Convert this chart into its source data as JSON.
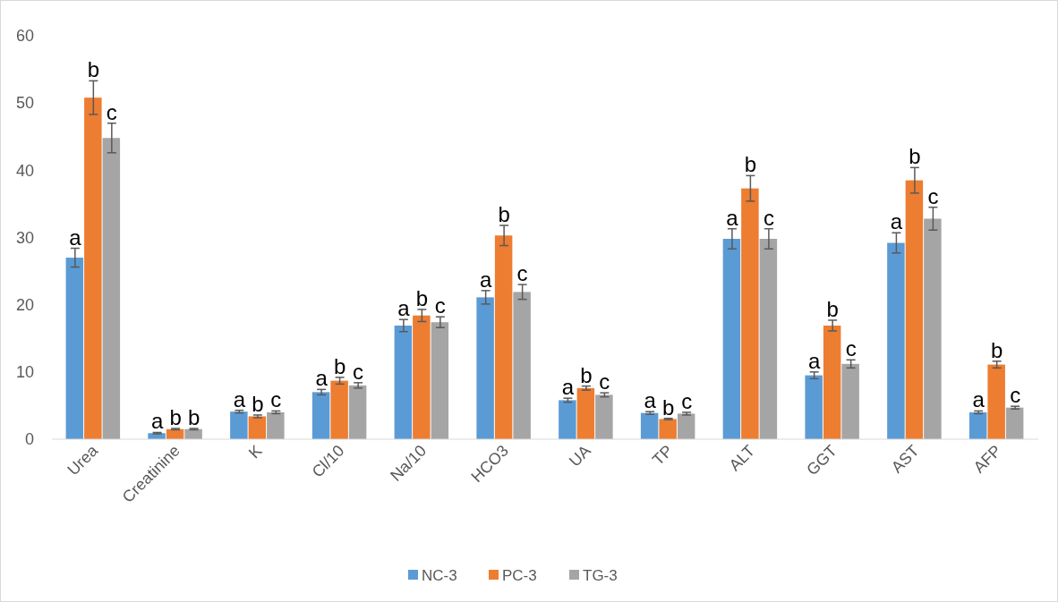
{
  "chart_data": {
    "type": "bar",
    "categories": [
      "Urea",
      "Creatinine",
      "K",
      "Cl/10",
      "Na/10",
      "HCO3",
      "UA",
      "TP",
      "ALT",
      "GGT",
      "AST",
      "AFP"
    ],
    "series": [
      {
        "name": "NC-3",
        "color": "#5b9bd5",
        "values": [
          27,
          0.9,
          4.1,
          7.0,
          16.9,
          21.1,
          5.8,
          3.9,
          29.8,
          9.5,
          29.2,
          4.0
        ],
        "errors": [
          1.4,
          0.1,
          0.2,
          0.4,
          0.9,
          1.0,
          0.3,
          0.2,
          1.5,
          0.5,
          1.5,
          0.2
        ],
        "value_labels": [
          "a",
          "a",
          "a",
          "a",
          "a",
          "a",
          "a",
          "a",
          "a",
          "a",
          "a",
          "a"
        ]
      },
      {
        "name": "PC-3",
        "color": "#ed7d31",
        "values": [
          50.8,
          1.5,
          3.4,
          8.7,
          18.4,
          30.3,
          7.6,
          3.0,
          37.3,
          16.9,
          38.5,
          11.1
        ],
        "errors": [
          2.5,
          0.1,
          0.2,
          0.5,
          0.9,
          1.5,
          0.3,
          0.1,
          1.9,
          0.8,
          1.9,
          0.5
        ],
        "value_labels": [
          "b",
          "b",
          "b",
          "b",
          "b",
          "b",
          "b",
          "b",
          "b",
          "b",
          "b",
          "b"
        ]
      },
      {
        "name": "TG-3",
        "color": "#a5a5a5",
        "values": [
          44.8,
          1.5,
          4.0,
          8.0,
          17.4,
          21.9,
          6.6,
          3.8,
          29.8,
          11.2,
          32.8,
          4.7
        ],
        "errors": [
          2.2,
          0.1,
          0.2,
          0.4,
          0.8,
          1.1,
          0.3,
          0.2,
          1.5,
          0.6,
          1.7,
          0.2
        ],
        "value_labels": [
          "c",
          "b",
          "c",
          "c",
          "c",
          "c",
          "c",
          "c",
          "c",
          "c",
          "c",
          "c"
        ]
      }
    ],
    "ylim": [
      0,
      60
    ],
    "yticks": [
      0,
      10,
      20,
      30,
      40,
      50,
      60
    ],
    "legend": "bottom"
  }
}
